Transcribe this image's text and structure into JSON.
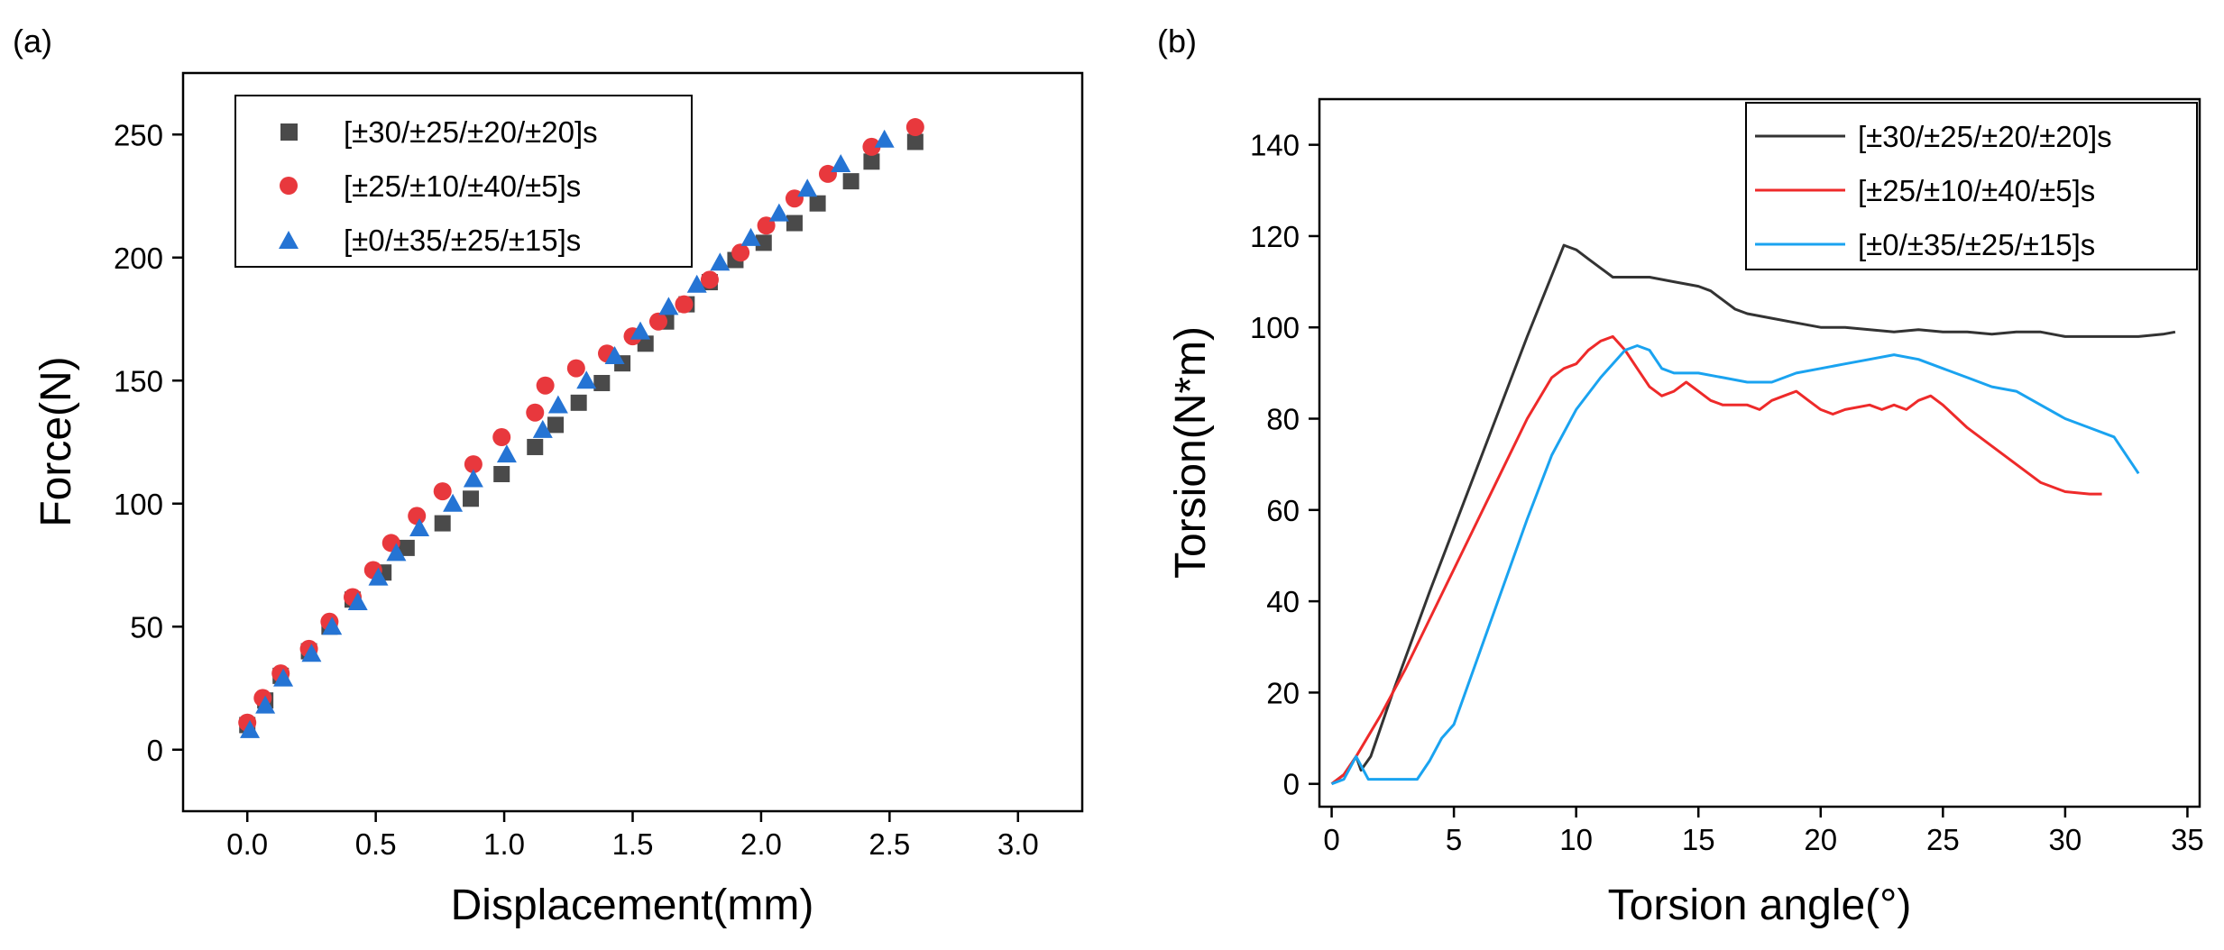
{
  "chart_data": [
    {
      "panel_label": "(a)",
      "type": "scatter",
      "xlabel": "Displacement(mm)",
      "ylabel": "Force(N)",
      "xlim": [
        -0.25,
        3.25
      ],
      "ylim": [
        -25,
        275
      ],
      "xticks": [
        "0.0",
        "0.5",
        "1.0",
        "1.5",
        "2.0",
        "2.5",
        "3.0"
      ],
      "yticks": [
        "0",
        "50",
        "100",
        "150",
        "200",
        "250"
      ],
      "legend_position": "top-left",
      "series": [
        {
          "name": "[±30/±25/±20/±20]s",
          "marker": "square",
          "color": "#4a4a4a",
          "x": [
            0.0,
            0.07,
            0.13,
            0.24,
            0.32,
            0.41,
            0.53,
            0.62,
            0.76,
            0.87,
            0.99,
            1.12,
            1.2,
            1.29,
            1.38,
            1.46,
            1.55,
            1.63,
            1.71,
            1.8,
            1.9,
            2.01,
            2.13,
            2.22,
            2.35,
            2.43,
            2.6
          ],
          "y": [
            10,
            20,
            30,
            40,
            50,
            61,
            72,
            82,
            92,
            102,
            112,
            123,
            132,
            141,
            149,
            157,
            165,
            174,
            181,
            190,
            199,
            206,
            214,
            222,
            231,
            239,
            247
          ]
        },
        {
          "name": "[±25/±10/±40/±5]s",
          "marker": "circle",
          "color": "#e8383d",
          "x": [
            0.0,
            0.06,
            0.13,
            0.24,
            0.32,
            0.41,
            0.49,
            0.56,
            0.66,
            0.76,
            0.88,
            0.99,
            1.12,
            1.16,
            1.28,
            1.4,
            1.5,
            1.6,
            1.7,
            1.8,
            1.92,
            2.02,
            2.13,
            2.26,
            2.43,
            2.6
          ],
          "y": [
            11,
            21,
            31,
            41,
            52,
            62,
            73,
            84,
            95,
            105,
            116,
            127,
            137,
            148,
            155,
            161,
            168,
            174,
            181,
            191,
            202,
            213,
            224,
            234,
            245,
            253
          ]
        },
        {
          "name": "[±0/±35/±25/±15]s",
          "marker": "triangle",
          "color": "#2574d4",
          "x": [
            0.01,
            0.07,
            0.14,
            0.25,
            0.33,
            0.43,
            0.51,
            0.58,
            0.67,
            0.8,
            0.88,
            1.01,
            1.15,
            1.21,
            1.32,
            1.43,
            1.53,
            1.64,
            1.75,
            1.84,
            1.96,
            2.07,
            2.18,
            2.31,
            2.48
          ],
          "y": [
            8,
            18,
            29,
            39,
            50,
            60,
            70,
            80,
            90,
            100,
            110,
            120,
            130,
            140,
            150,
            160,
            170,
            180,
            189,
            198,
            208,
            218,
            228,
            238,
            248
          ]
        }
      ]
    },
    {
      "panel_label": "(b)",
      "type": "line",
      "xlabel": "Torsion angle(°)",
      "ylabel": "Torsion(N*m)",
      "xlim": [
        -0.5,
        35.5
      ],
      "ylim": [
        -5,
        150
      ],
      "xticks": [
        "0",
        "5",
        "10",
        "15",
        "20",
        "25",
        "30",
        "35"
      ],
      "yticks": [
        "0",
        "20",
        "40",
        "60",
        "80",
        "100",
        "120",
        "140"
      ],
      "legend_position": "top-right",
      "series": [
        {
          "name": "[±30/±25/±20/±20]s",
          "color": "#333333",
          "x": [
            0,
            0.5,
            1.0,
            1.2,
            1.6,
            2.5,
            4,
            6,
            8,
            9.5,
            10,
            10.5,
            11,
            11.5,
            12,
            13,
            14,
            15,
            15.5,
            16,
            16.5,
            17,
            18,
            19,
            20,
            21,
            22,
            23,
            24,
            25,
            26,
            27,
            28,
            29,
            30,
            31,
            32,
            33,
            34,
            34.5
          ],
          "y": [
            0,
            2,
            6,
            3,
            6,
            20,
            42,
            70,
            98,
            118,
            117,
            115,
            113,
            111,
            111,
            111,
            110,
            109,
            108,
            106,
            104,
            103,
            102,
            101,
            100,
            100,
            99.5,
            99,
            99.5,
            99,
            99,
            98.5,
            99,
            99,
            98,
            98,
            98,
            98,
            98.5,
            99
          ]
        },
        {
          "name": "[±25/±10/±40/±5]s",
          "color": "#ee2a2a",
          "x": [
            0,
            0.5,
            1.0,
            2,
            3,
            4,
            5,
            6,
            7,
            8,
            9,
            9.5,
            10,
            10.5,
            11,
            11.5,
            12,
            12.5,
            13,
            13.5,
            14,
            14.5,
            15,
            15.5,
            16,
            17,
            17.5,
            18,
            18.5,
            19,
            19.5,
            20,
            20.5,
            21,
            22,
            22.5,
            23,
            23.5,
            24,
            24.5,
            25,
            26,
            27,
            28,
            29,
            30,
            31,
            31.5
          ],
          "y": [
            0,
            2,
            6,
            15,
            25,
            36,
            47,
            58,
            69,
            80,
            89,
            91,
            92,
            95,
            97,
            98,
            95,
            91,
            87,
            85,
            86,
            88,
            86,
            84,
            83,
            83,
            82,
            84,
            85,
            86,
            84,
            82,
            81,
            82,
            83,
            82,
            83,
            82,
            84,
            85,
            83,
            78,
            74,
            70,
            66,
            64,
            63.5,
            63.5
          ]
        },
        {
          "name": "[±0/±35/±25/±15]s",
          "color": "#1aa3f0",
          "x": [
            0,
            0.5,
            1.0,
            1.5,
            2,
            3,
            3.5,
            4,
            4.5,
            5,
            6,
            7,
            8,
            9,
            10,
            11,
            11.5,
            12,
            12.5,
            13,
            13.5,
            14,
            15,
            16,
            17,
            18,
            19,
            20,
            21,
            22,
            23,
            24,
            25,
            26,
            27,
            28,
            29,
            30,
            31,
            32,
            33
          ],
          "y": [
            0,
            1,
            6,
            1,
            1,
            1,
            1,
            5,
            10,
            13,
            28,
            43,
            58,
            72,
            82,
            89,
            92,
            95,
            96,
            95,
            91,
            90,
            90,
            89,
            88,
            88,
            90,
            91,
            92,
            93,
            94,
            93,
            91,
            89,
            87,
            86,
            83,
            80,
            78,
            76,
            68
          ]
        }
      ]
    }
  ]
}
